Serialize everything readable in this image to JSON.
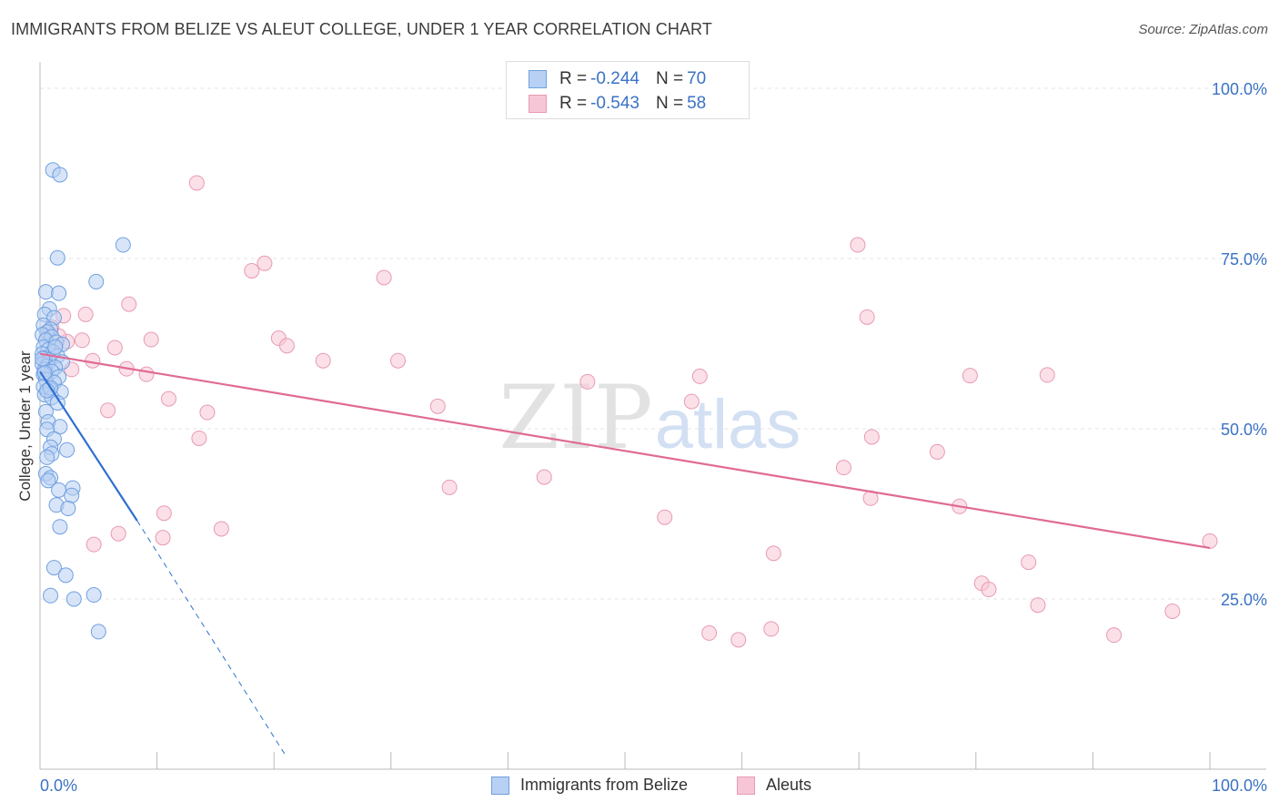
{
  "title": "IMMIGRANTS FROM BELIZE VS ALEUT COLLEGE, UNDER 1 YEAR CORRELATION CHART",
  "source": "Source: ZipAtlas.com",
  "watermark": {
    "zip": "ZIP",
    "atlas": "atlas"
  },
  "colors": {
    "blue_fill": "#b8d0f3",
    "blue_stroke": "#6fa0e0",
    "blue_line": "#2f6fd0",
    "pink_fill": "#f7c6d6",
    "pink_stroke": "#e89ab3",
    "pink_line": "#e06a94",
    "accent_text": "#3a72c4",
    "grid": "#e6e6e6"
  },
  "legend": {
    "r_label": "R =",
    "n_label": "N =",
    "series": [
      {
        "name": "Immigrants from Belize",
        "r": "-0.244",
        "n": "70"
      },
      {
        "name": "Aleuts",
        "r": "-0.543",
        "n": "58"
      }
    ]
  },
  "chart_data": {
    "type": "scatter",
    "title": "IMMIGRANTS FROM BELIZE VS ALEUT COLLEGE, UNDER 1 YEAR CORRELATION CHART",
    "xlabel": "",
    "ylabel": "College, Under 1 year",
    "xlim": [
      0,
      100
    ],
    "ylim": [
      0,
      100
    ],
    "x_tick_labels": [
      "0.0%",
      "100.0%"
    ],
    "y_tick_labels": [
      "25.0%",
      "50.0%",
      "75.0%",
      "100.0%"
    ],
    "y_ticks": [
      25,
      50,
      75,
      100
    ],
    "series": [
      {
        "name": "Immigrants from Belize",
        "r": -0.244,
        "n": 70,
        "trend": {
          "x": [
            0,
            8.3
          ],
          "y": [
            58.4,
            36.5
          ],
          "dashed_to": [
            21.0,
            2.0
          ]
        },
        "points": [
          [
            1.1,
            88.0
          ],
          [
            1.7,
            87.3
          ],
          [
            7.1,
            77.0
          ],
          [
            1.5,
            75.1
          ],
          [
            4.8,
            71.6
          ],
          [
            0.5,
            70.1
          ],
          [
            1.6,
            69.9
          ],
          [
            0.8,
            67.6
          ],
          [
            0.4,
            66.8
          ],
          [
            1.2,
            66.3
          ],
          [
            0.3,
            65.2
          ],
          [
            0.9,
            64.6
          ],
          [
            0.6,
            64.2
          ],
          [
            0.2,
            63.8
          ],
          [
            1.0,
            63.5
          ],
          [
            0.5,
            63.0
          ],
          [
            1.4,
            62.7
          ],
          [
            1.9,
            62.4
          ],
          [
            0.3,
            62.0
          ],
          [
            0.7,
            61.6
          ],
          [
            1.1,
            61.3
          ],
          [
            0.2,
            61.0
          ],
          [
            1.5,
            60.7
          ],
          [
            0.4,
            60.4
          ],
          [
            0.8,
            60.1
          ],
          [
            1.9,
            59.8
          ],
          [
            0.2,
            59.5
          ],
          [
            0.6,
            59.2
          ],
          [
            1.3,
            59.0
          ],
          [
            0.4,
            58.7
          ],
          [
            1.0,
            58.4
          ],
          [
            0.3,
            58.0
          ],
          [
            1.6,
            57.6
          ],
          [
            0.5,
            57.2
          ],
          [
            1.2,
            56.8
          ],
          [
            0.3,
            56.2
          ],
          [
            0.8,
            55.8
          ],
          [
            1.8,
            55.4
          ],
          [
            0.4,
            55.0
          ],
          [
            1.0,
            54.6
          ],
          [
            1.5,
            53.8
          ],
          [
            0.5,
            52.5
          ],
          [
            0.7,
            51.0
          ],
          [
            1.7,
            50.3
          ],
          [
            0.6,
            49.9
          ],
          [
            1.2,
            48.5
          ],
          [
            0.9,
            47.3
          ],
          [
            2.3,
            46.9
          ],
          [
            1.0,
            46.3
          ],
          [
            0.6,
            45.8
          ],
          [
            0.5,
            43.4
          ],
          [
            0.9,
            42.8
          ],
          [
            0.7,
            42.4
          ],
          [
            2.8,
            41.3
          ],
          [
            1.6,
            41.0
          ],
          [
            2.7,
            40.2
          ],
          [
            1.4,
            38.8
          ],
          [
            2.4,
            38.3
          ],
          [
            1.7,
            35.6
          ],
          [
            1.2,
            29.6
          ],
          [
            2.2,
            28.5
          ],
          [
            0.9,
            25.5
          ],
          [
            4.6,
            25.6
          ],
          [
            2.9,
            25.0
          ],
          [
            5.0,
            20.2
          ],
          [
            0.4,
            58.2
          ],
          [
            0.9,
            56.0
          ],
          [
            1.3,
            62.0
          ],
          [
            0.2,
            60.3
          ],
          [
            0.6,
            55.6
          ]
        ]
      },
      {
        "name": "Aleuts",
        "r": -0.543,
        "n": 58,
        "trend": {
          "x": [
            0,
            100
          ],
          "y": [
            61.0,
            32.5
          ]
        },
        "points": [
          [
            13.4,
            86.1
          ],
          [
            69.9,
            77.0
          ],
          [
            19.2,
            74.3
          ],
          [
            18.1,
            73.2
          ],
          [
            29.4,
            72.2
          ],
          [
            7.6,
            68.3
          ],
          [
            3.9,
            66.8
          ],
          [
            70.7,
            66.4
          ],
          [
            2.0,
            66.6
          ],
          [
            1.0,
            64.9
          ],
          [
            0.7,
            64.2
          ],
          [
            3.6,
            63.0
          ],
          [
            2.3,
            62.8
          ],
          [
            9.5,
            63.1
          ],
          [
            20.4,
            63.3
          ],
          [
            21.1,
            62.2
          ],
          [
            6.4,
            61.9
          ],
          [
            4.5,
            60.0
          ],
          [
            24.2,
            60.0
          ],
          [
            30.6,
            60.0
          ],
          [
            7.4,
            58.8
          ],
          [
            9.1,
            58.0
          ],
          [
            56.4,
            57.7
          ],
          [
            79.5,
            57.8
          ],
          [
            86.1,
            57.9
          ],
          [
            46.8,
            56.9
          ],
          [
            11.0,
            54.4
          ],
          [
            55.7,
            54.0
          ],
          [
            34.0,
            53.3
          ],
          [
            5.8,
            52.7
          ],
          [
            14.3,
            52.4
          ],
          [
            71.1,
            48.8
          ],
          [
            13.6,
            48.6
          ],
          [
            76.7,
            46.6
          ],
          [
            68.7,
            44.3
          ],
          [
            43.1,
            42.9
          ],
          [
            35.0,
            41.4
          ],
          [
            71.0,
            39.8
          ],
          [
            78.6,
            38.6
          ],
          [
            10.6,
            37.6
          ],
          [
            53.4,
            37.0
          ],
          [
            15.5,
            35.3
          ],
          [
            6.7,
            34.6
          ],
          [
            10.5,
            34.0
          ],
          [
            100.0,
            33.5
          ],
          [
            4.6,
            33.0
          ],
          [
            62.7,
            31.7
          ],
          [
            84.5,
            30.4
          ],
          [
            80.5,
            27.3
          ],
          [
            81.1,
            26.4
          ],
          [
            85.3,
            24.1
          ],
          [
            96.8,
            23.2
          ],
          [
            62.5,
            20.6
          ],
          [
            57.2,
            20.0
          ],
          [
            59.7,
            19.0
          ],
          [
            91.8,
            19.7
          ],
          [
            1.6,
            63.6
          ],
          [
            2.7,
            58.7
          ]
        ]
      }
    ]
  }
}
